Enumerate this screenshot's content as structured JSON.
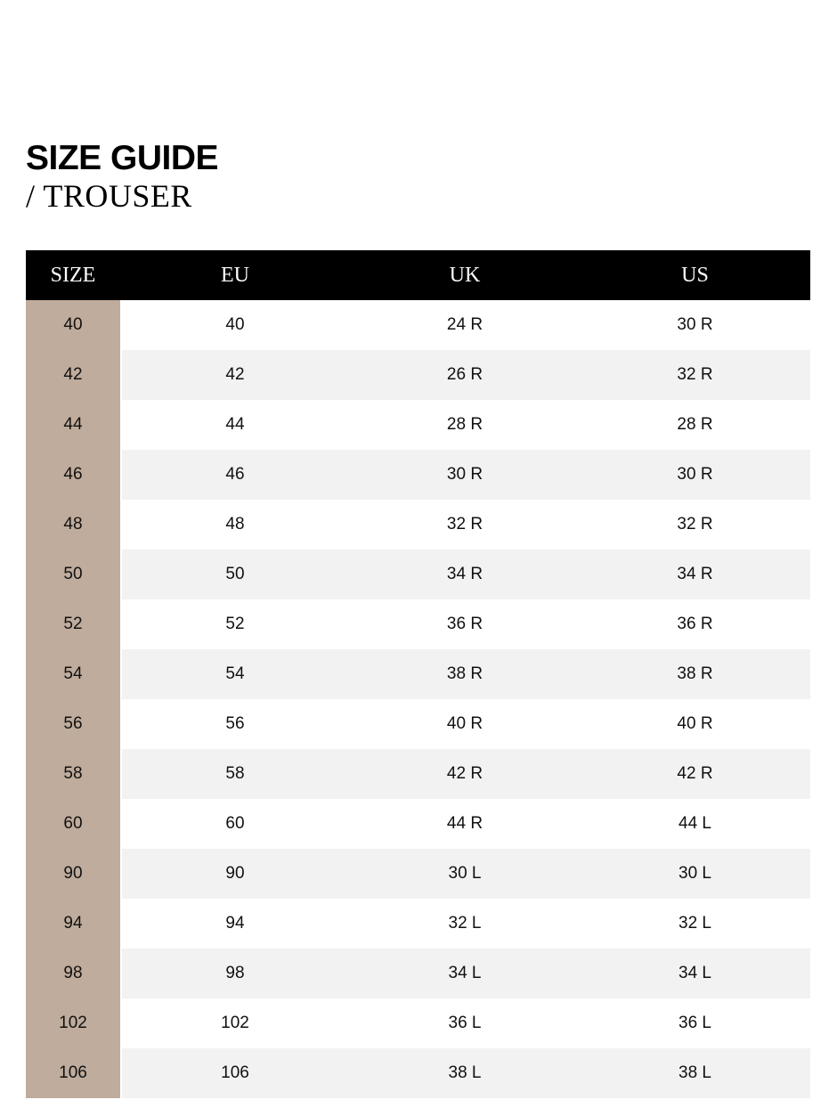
{
  "header": {
    "title": "SIZE GUIDE",
    "subtitle": "/ TROUSER"
  },
  "colors": {
    "header_bg": "#000000",
    "size_column": "#bfac9c",
    "alt_row": "#f2f2f2"
  },
  "table": {
    "columns": [
      "SIZE",
      "EU",
      "UK",
      "US"
    ],
    "rows": [
      [
        "40",
        "40",
        "24 R",
        "30 R"
      ],
      [
        "42",
        "42",
        "26 R",
        "32 R"
      ],
      [
        "44",
        "44",
        "28 R",
        "28 R"
      ],
      [
        "46",
        "46",
        "30 R",
        "30 R"
      ],
      [
        "48",
        "48",
        "32 R",
        "32 R"
      ],
      [
        "50",
        "50",
        "34 R",
        "34 R"
      ],
      [
        "52",
        "52",
        "36 R",
        "36 R"
      ],
      [
        "54",
        "54",
        "38 R",
        "38 R"
      ],
      [
        "56",
        "56",
        "40 R",
        "40 R"
      ],
      [
        "58",
        "58",
        "42 R",
        "42 R"
      ],
      [
        "60",
        "60",
        "44 R",
        "44 L"
      ],
      [
        "90",
        "90",
        "30 L",
        "30 L"
      ],
      [
        "94",
        "94",
        "32 L",
        "32 L"
      ],
      [
        "98",
        "98",
        "34 L",
        "34 L"
      ],
      [
        "102",
        "102",
        "36 L",
        "36 L"
      ],
      [
        "106",
        "106",
        "38 L",
        "38 L"
      ]
    ]
  }
}
